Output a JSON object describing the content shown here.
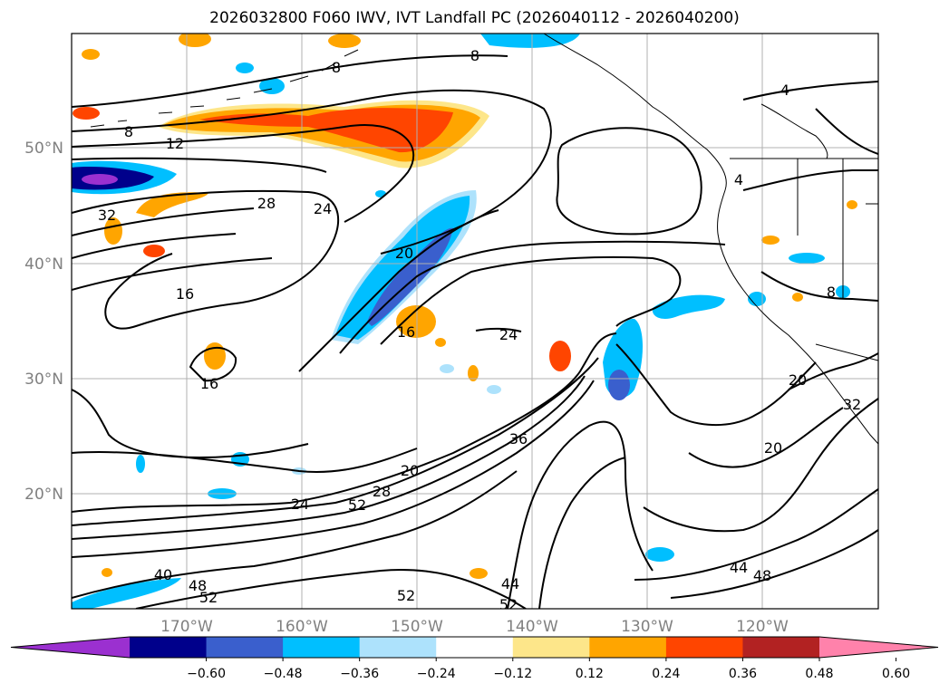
{
  "title": "2026032800 F060 IWV, IVT Landfall PC (2026040112 - 2026040200)",
  "map": {
    "lat_labels": [
      "50°N",
      "40°N",
      "30°N",
      "20°N"
    ],
    "lon_labels": [
      "170°W",
      "160°W",
      "150°W",
      "140°W",
      "130°W",
      "120°W"
    ],
    "grid": true,
    "label_color": "#808080"
  },
  "contour_labels": [
    "8",
    "8",
    "4",
    "12",
    "28",
    "24",
    "32",
    "4",
    "8",
    "20",
    "16",
    "16",
    "16",
    "24",
    "20",
    "20",
    "36",
    "20",
    "28",
    "24",
    "52",
    "40",
    "48",
    "52",
    "52",
    "44",
    "52",
    "44",
    "48",
    "32",
    "8"
  ],
  "colorbar": {
    "ticks": [
      "−0.60",
      "−0.48",
      "−0.36",
      "−0.24",
      "−0.12",
      "0.12",
      "0.24",
      "0.36",
      "0.48",
      "0.60"
    ],
    "colors": [
      "#9b30d0",
      "#00008b",
      "#3a5fcd",
      "#00bfff",
      "#ade2fc",
      "#ffffff",
      "#fde68a",
      "#ffa500",
      "#ff4500",
      "#b22222",
      "#ff82ab"
    ]
  }
}
